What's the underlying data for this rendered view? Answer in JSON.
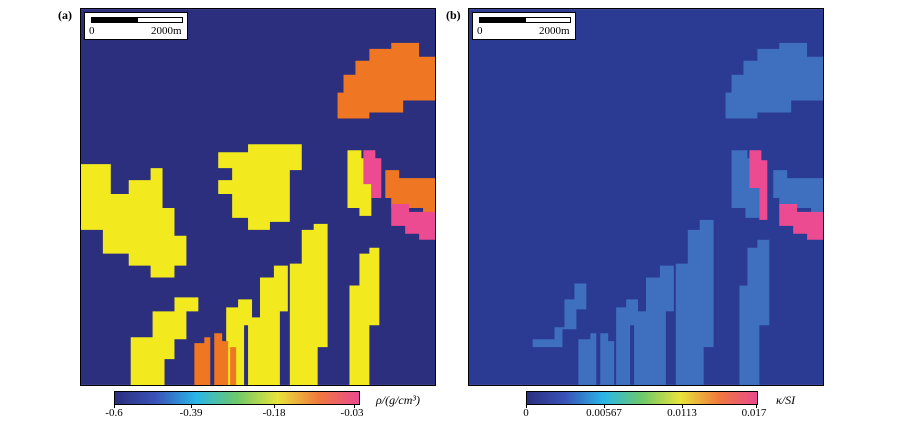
{
  "panels": [
    {
      "label": "(a)",
      "scale_start": "0",
      "scale_end": "2000m",
      "colorbar_ticks": [
        "-0.6",
        "-0.39",
        "-0.18",
        "-0.03"
      ],
      "colorbar_label": "ρ/(g/cm³)",
      "colors": {
        "background": "#2b2f7e",
        "yellow": "#f2ea1f",
        "orange": "#ef7622",
        "pink": "#ec4a91"
      }
    },
    {
      "label": "(b)",
      "scale_start": "0",
      "scale_end": "2000m",
      "colorbar_ticks": [
        "0",
        "0.00567",
        "0.0113",
        "0.017"
      ],
      "colorbar_label": "κ/SI",
      "colors": {
        "background": "#2b3a92",
        "blue": "#3f6fbf",
        "pink": "#ec4a91"
      }
    }
  ],
  "colorbar_gradient": [
    "#2b2f7e",
    "#3a52b8",
    "#29b6e8",
    "#6dc96a",
    "#e8e43a",
    "#f07a3c",
    "#ea4a8f"
  ]
}
